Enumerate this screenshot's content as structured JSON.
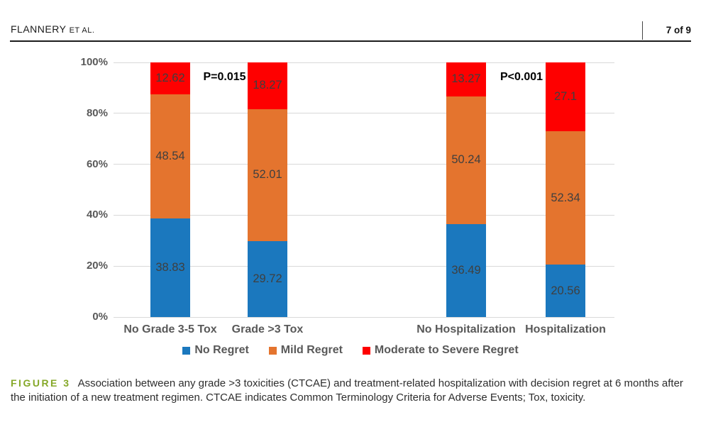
{
  "header": {
    "author": "FLANNERY",
    "etal": "ET AL.",
    "page": "7 of 9"
  },
  "chart_data": {
    "type": "bar",
    "stacked": true,
    "grid": true,
    "legend_position": "bottom",
    "categories": [
      "No Grade 3-5 Tox",
      "Grade >3 Tox",
      "No Hospitalization",
      "Hospitalization"
    ],
    "series": [
      {
        "name": "No Regret",
        "color": "#1b78be",
        "values": [
          38.83,
          29.72,
          36.49,
          20.56
        ]
      },
      {
        "name": "Mild Regret",
        "color": "#e4742e",
        "values": [
          48.54,
          52.01,
          50.24,
          52.34
        ]
      },
      {
        "name": "Moderate to Severe Regret",
        "color": "#fe0000",
        "values": [
          12.62,
          18.27,
          13.27,
          27.1
        ]
      }
    ],
    "yticks": [
      "0%",
      "20%",
      "40%",
      "60%",
      "80%",
      "100%"
    ],
    "ylim": [
      0,
      100
    ],
    "annotations": [
      {
        "text": "P=0.015",
        "between": [
          0,
          1
        ]
      },
      {
        "text": "P<0.001",
        "between": [
          2,
          3
        ]
      }
    ]
  },
  "caption": {
    "label": "FIGURE 3",
    "text": "Association between any grade >3 toxicities (CTCAE) and treatment-related hospitalization with decision regret at 6 months after the initiation of a new treatment regimen. CTCAE indicates Common Terminology Criteria for Adverse Events; Tox, toxicity."
  }
}
